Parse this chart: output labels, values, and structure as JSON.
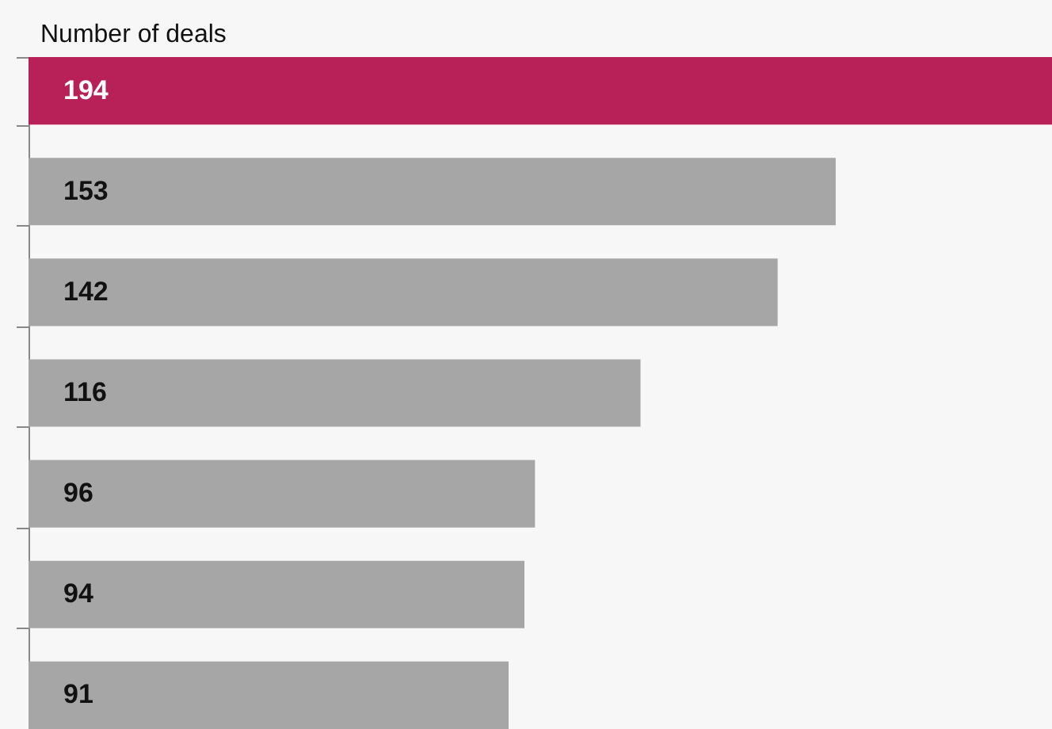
{
  "chart_data": {
    "type": "bar",
    "orientation": "horizontal",
    "title": "Number of deals",
    "categories": [
      null,
      null,
      null,
      null,
      null,
      null,
      null
    ],
    "values": [
      194,
      153,
      142,
      116,
      96,
      94,
      91
    ],
    "colors": [
      "#b82157",
      "#a6a6a6",
      "#a6a6a6",
      "#a6a6a6",
      "#a6a6a6",
      "#a6a6a6",
      "#a6a6a6"
    ],
    "data_labels": true,
    "tick_labels": false
  }
}
